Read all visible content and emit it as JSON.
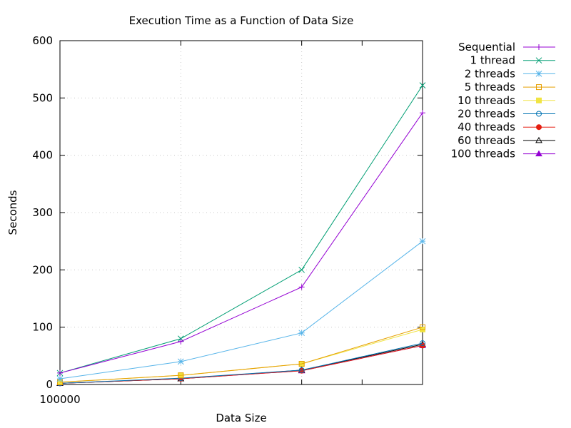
{
  "chart_data": {
    "type": "line",
    "title": "Execution Time as a Function of Data Size",
    "xlabel": "Data Size",
    "ylabel": "Seconds",
    "ylim": [
      0,
      600
    ],
    "yticks": [
      0,
      100,
      200,
      300,
      400,
      500,
      600
    ],
    "xtick_labels": [
      "100000"
    ],
    "x": [
      1,
      2,
      3,
      4
    ],
    "xlim": [
      1,
      4
    ],
    "grid": true,
    "legend_position": "top-right, outside",
    "series": [
      {
        "name": "Sequential",
        "color": "#9400d3",
        "marker": "plus",
        "values": [
          20,
          75,
          170,
          474
        ]
      },
      {
        "name": "1 thread",
        "color": "#009e73",
        "marker": "cross",
        "values": [
          20,
          80,
          200,
          522
        ]
      },
      {
        "name": "2 threads",
        "color": "#56b4e9",
        "marker": "star",
        "values": [
          10,
          40,
          90,
          250
        ]
      },
      {
        "name": "5 threads",
        "color": "#e69f00",
        "marker": "square-open",
        "values": [
          4,
          16,
          36,
          100
        ]
      },
      {
        "name": "10 threads",
        "color": "#f0e442",
        "marker": "square-filled",
        "values": [
          4,
          16,
          36,
          96
        ]
      },
      {
        "name": "20 threads",
        "color": "#0072b2",
        "marker": "circle-open",
        "values": [
          2,
          11,
          25,
          72
        ]
      },
      {
        "name": "40 threads",
        "color": "#e51e10",
        "marker": "circle-filled",
        "values": [
          2,
          10,
          24,
          68
        ]
      },
      {
        "name": "60 threads",
        "color": "#000000",
        "marker": "triangle-open",
        "values": [
          2,
          10,
          25,
          70
        ]
      },
      {
        "name": "100 threads",
        "color": "#9400d3",
        "marker": "triangle-filled",
        "values": [
          2,
          10,
          24,
          68
        ]
      }
    ]
  }
}
